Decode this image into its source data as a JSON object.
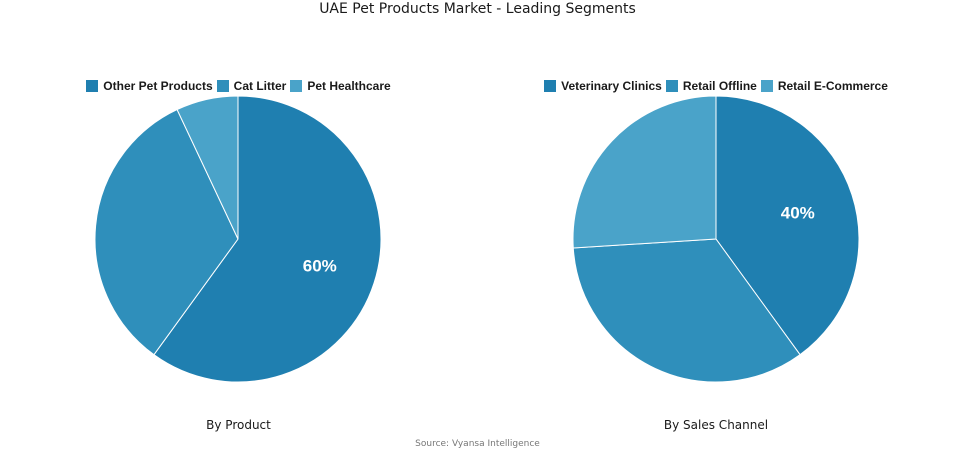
{
  "title": "UAE Pet Products Market - Leading Segments",
  "source": "Source: Vyansa Intelligence",
  "chart_data": [
    {
      "type": "pie",
      "subtitle": "By Product",
      "categories": [
        "Other Pet Products",
        "Cat Litter",
        "Pet Healthcare"
      ],
      "values": [
        60,
        33,
        7
      ],
      "colors": [
        "#1f7fb0",
        "#2f8fbb",
        "#4aa3c9"
      ],
      "data_labels": [
        "60%",
        "",
        ""
      ],
      "legend_position": "top"
    },
    {
      "type": "pie",
      "subtitle": "By Sales Channel",
      "categories": [
        "Veterinary Clinics",
        "Retail Offline",
        "Retail E-Commerce"
      ],
      "values": [
        40,
        34,
        26
      ],
      "colors": [
        "#1f7fb0",
        "#2f8fbb",
        "#4aa3c9"
      ],
      "data_labels": [
        "40%",
        "",
        ""
      ],
      "legend_position": "top"
    }
  ]
}
